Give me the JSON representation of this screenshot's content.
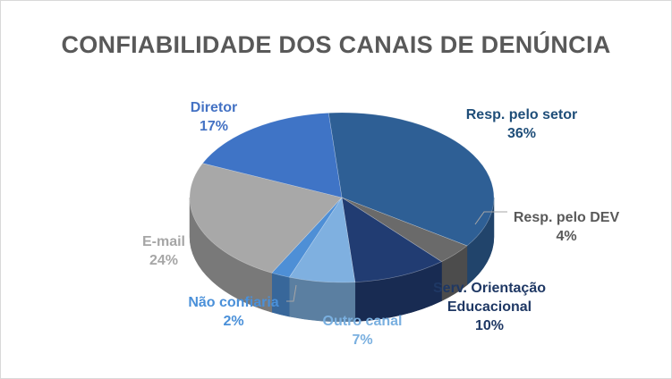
{
  "chart_data": {
    "type": "pie",
    "title": "CONFIABILIDADE DOS CANAIS DE DENÚNCIA",
    "slices": [
      {
        "label": "Resp. pelo setor",
        "value": 36,
        "value_label": "36%",
        "color": "#2e5f95",
        "label_color": "#1f4e79"
      },
      {
        "label": "Resp. pelo DEV",
        "value": 4,
        "value_label": "4%",
        "color": "#6a6a6a",
        "label_color": "#595959"
      },
      {
        "label": "Serv. Orientação Educacional",
        "value": 10,
        "value_label": "10%",
        "color": "#213c72",
        "label_color": "#1f3864"
      },
      {
        "label": "Outro canal",
        "value": 7,
        "value_label": "7%",
        "color": "#7fb0e0",
        "label_color": "#7ab0e0"
      },
      {
        "label": "Não confiaria",
        "value": 2,
        "value_label": "2%",
        "color": "#4e8fd6",
        "label_color": "#4a90d9"
      },
      {
        "label": "E-mail",
        "value": 24,
        "value_label": "24%",
        "color": "#a8a8a8",
        "label_color": "#a6a6a6"
      },
      {
        "label": "Diretor",
        "value": 17,
        "value_label": "17%",
        "color": "#3f74c6",
        "label_color": "#4472c4"
      }
    ]
  }
}
